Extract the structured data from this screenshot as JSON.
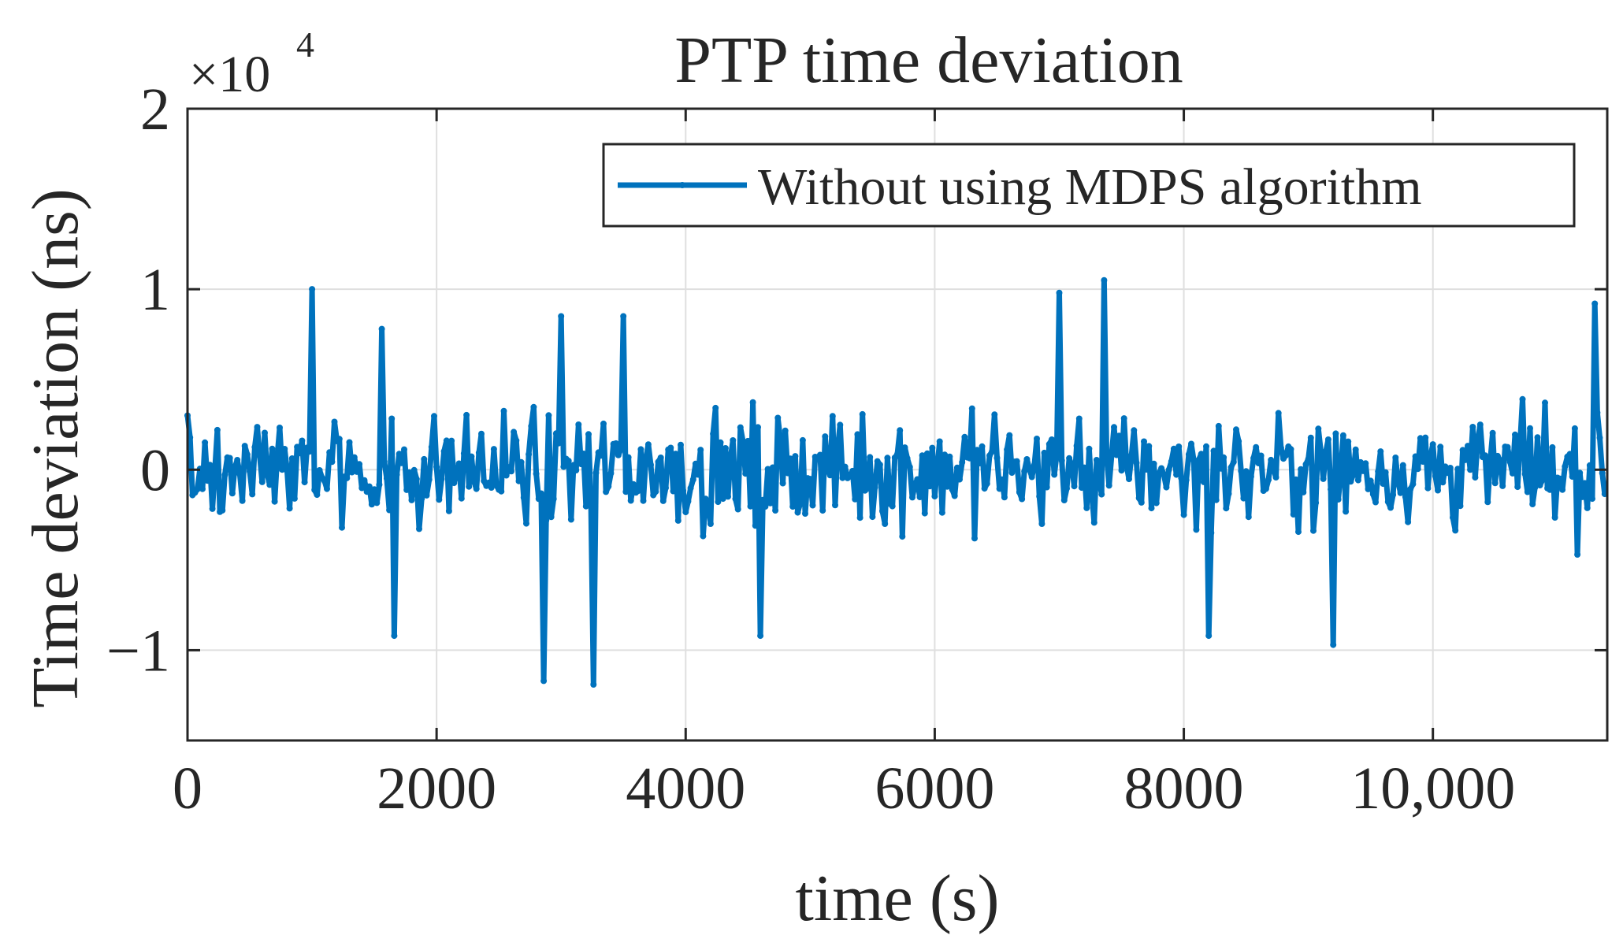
{
  "chart_data": {
    "type": "line",
    "title": "PTP time deviation",
    "xlabel": "time (s)",
    "ylabel": "Time deviation (ns)",
    "y_exponent_label": "×10",
    "y_exponent_power": "4",
    "xlim": [
      0,
      11400
    ],
    "ylim": [
      -1.5,
      2
    ],
    "xticks": [
      0,
      2000,
      4000,
      6000,
      8000,
      10000
    ],
    "xtick_labels": [
      "0",
      "2000",
      "4000",
      "6000",
      "8000",
      "10,000"
    ],
    "yticks": [
      -1,
      0,
      1,
      2
    ],
    "ytick_labels": [
      "−1",
      "0",
      "1",
      "2"
    ],
    "grid": true,
    "legend_position": "top-right",
    "series": [
      {
        "name": "Without using MDPS algorithm",
        "color": "#0072BD",
        "x_start": 0,
        "x_step": 20,
        "n_points": 570,
        "marker": "dot",
        "noise_std": 0.3,
        "peaks": [
          [
            0,
            0.3
          ],
          [
            1000,
            1.0
          ],
          [
            1550,
            0.78
          ],
          [
            1650,
            -0.92
          ],
          [
            2850,
            -1.17
          ],
          [
            3000,
            0.85
          ],
          [
            3250,
            -1.19
          ],
          [
            3500,
            0.85
          ],
          [
            4600,
            -0.92
          ],
          [
            7000,
            0.98
          ],
          [
            7350,
            1.05
          ],
          [
            8200,
            -0.92
          ],
          [
            9200,
            -0.97
          ],
          [
            11300,
            0.92
          ]
        ]
      }
    ]
  }
}
